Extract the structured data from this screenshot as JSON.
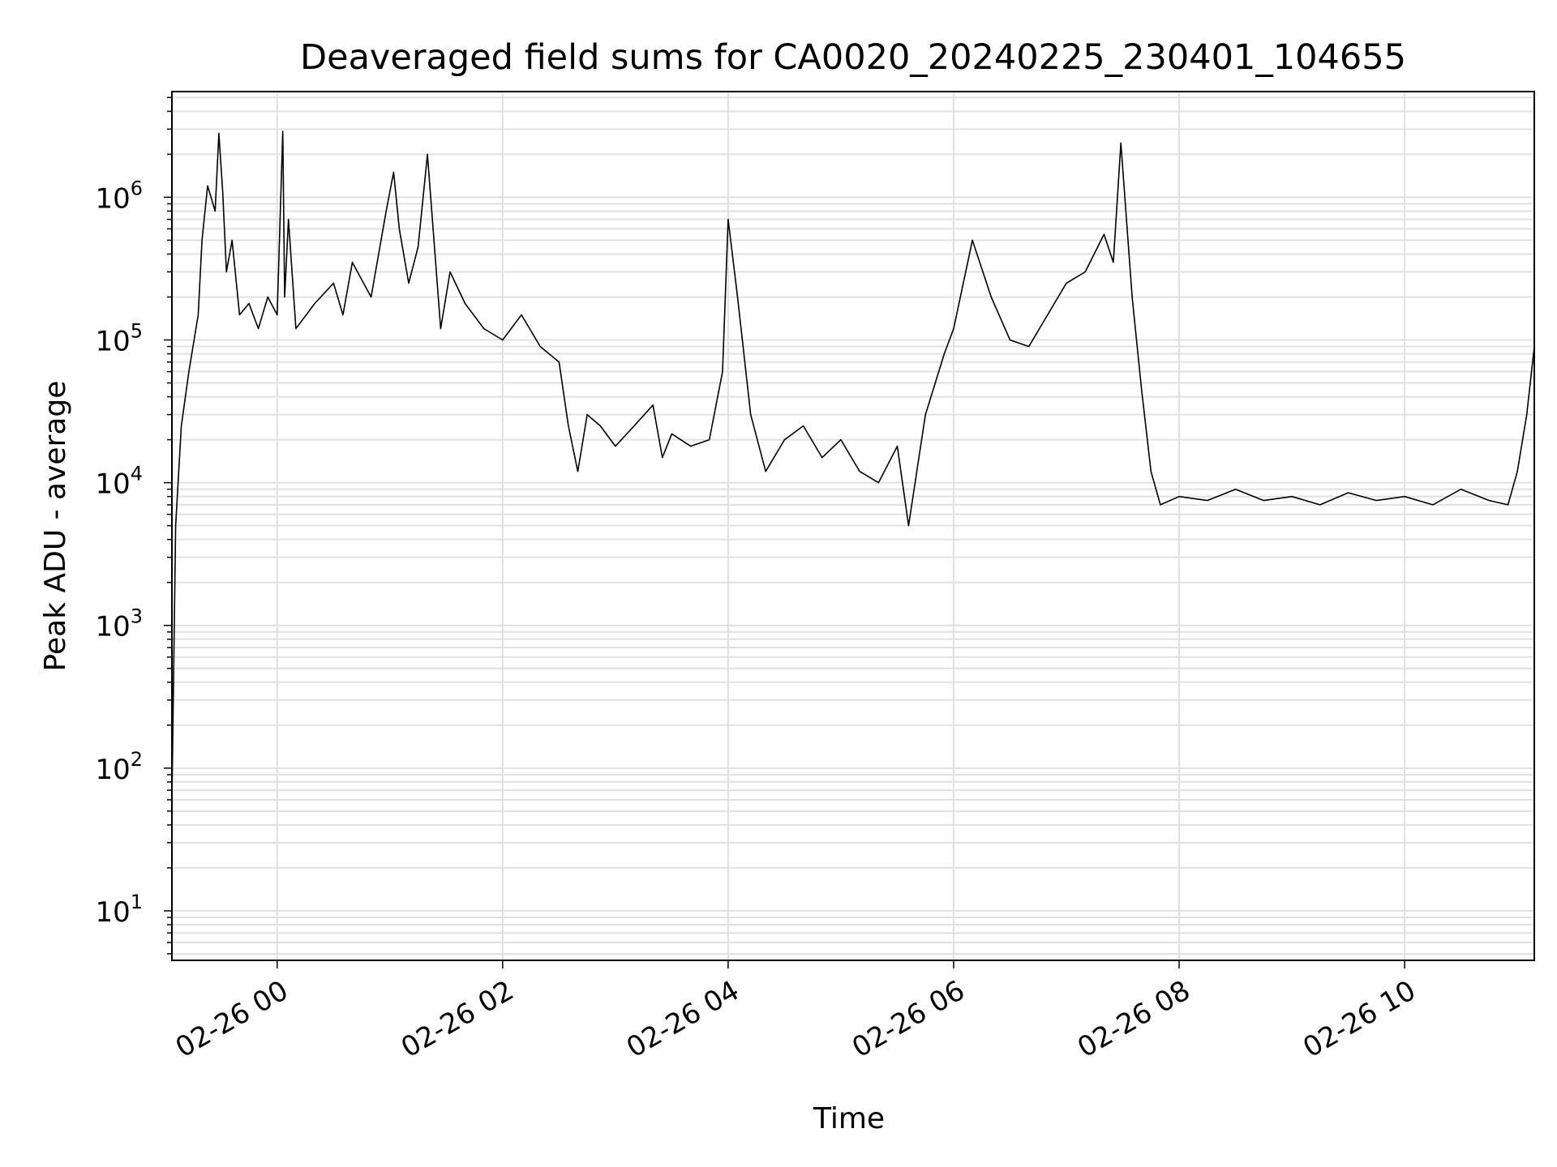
{
  "chart_data": {
    "type": "line",
    "title": "Deaveraged field sums for CA0020_20240225_230401_104655",
    "xlabel": "Time",
    "ylabel": "Peak ADU - average",
    "y_scale": "log",
    "ylim": [
      4.5,
      5500000
    ],
    "xlim": [
      "02-25 23:04",
      "02-26 11:09"
    ],
    "grid": true,
    "line_color": "#000000",
    "grid_color": "#e0e0e0",
    "x_ticks": [
      "02-26 00",
      "02-26 02",
      "02-26 04",
      "02-26 06",
      "02-26 08",
      "02-26 10"
    ],
    "y_ticks": [
      {
        "base": "10",
        "exp": "1"
      },
      {
        "base": "10",
        "exp": "2"
      },
      {
        "base": "10",
        "exp": "3"
      },
      {
        "base": "10",
        "exp": "4"
      },
      {
        "base": "10",
        "exp": "5"
      },
      {
        "base": "10",
        "exp": "6"
      }
    ],
    "series": [
      {
        "x": [
          "02-25 23:04",
          "02-25 23:06",
          "02-25 23:09",
          "02-25 23:13",
          "02-25 23:18",
          "02-25 23:20",
          "02-25 23:23",
          "02-25 23:27",
          "02-25 23:29",
          "02-25 23:31",
          "02-25 23:33",
          "02-25 23:36",
          "02-25 23:40",
          "02-25 23:45",
          "02-25 23:50",
          "02-25 23:55",
          "02-26 00:00",
          "02-26 00:03",
          "02-26 00:04",
          "02-26 00:06",
          "02-26 00:10",
          "02-26 00:20",
          "02-26 00:30",
          "02-26 00:35",
          "02-26 00:40",
          "02-26 00:50",
          "02-26 00:58",
          "02-26 01:02",
          "02-26 01:05",
          "02-26 01:10",
          "02-26 01:15",
          "02-26 01:20",
          "02-26 01:27",
          "02-26 01:32",
          "02-26 01:40",
          "02-26 01:50",
          "02-26 02:00",
          "02-26 02:10",
          "02-26 02:20",
          "02-26 02:30",
          "02-26 02:35",
          "02-26 02:40",
          "02-26 02:45",
          "02-26 02:52",
          "02-26 03:00",
          "02-26 03:10",
          "02-26 03:20",
          "02-26 03:25",
          "02-26 03:30",
          "02-26 03:40",
          "02-26 03:50",
          "02-26 03:57",
          "02-26 04:00",
          "02-26 04:05",
          "02-26 04:12",
          "02-26 04:20",
          "02-26 04:30",
          "02-26 04:40",
          "02-26 04:50",
          "02-26 05:00",
          "02-26 05:10",
          "02-26 05:20",
          "02-26 05:30",
          "02-26 05:36",
          "02-26 05:45",
          "02-26 05:55",
          "02-26 06:00",
          "02-26 06:10",
          "02-26 06:20",
          "02-26 06:30",
          "02-26 06:40",
          "02-26 06:50",
          "02-26 07:00",
          "02-26 07:10",
          "02-26 07:20",
          "02-26 07:25",
          "02-26 07:29",
          "02-26 07:35",
          "02-26 07:40",
          "02-26 07:45",
          "02-26 07:50",
          "02-26 08:00",
          "02-26 08:15",
          "02-26 08:30",
          "02-26 08:45",
          "02-26 09:00",
          "02-26 09:15",
          "02-26 09:30",
          "02-26 09:45",
          "02-26 10:00",
          "02-26 10:15",
          "02-26 10:30",
          "02-26 10:45",
          "02-26 10:55",
          "02-26 11:00",
          "02-26 11:05",
          "02-26 11:09"
        ],
        "y": [
          60,
          5000,
          25000,
          60000,
          150000,
          500000,
          1200000,
          800000,
          2800000,
          1100000,
          300000,
          500000,
          150000,
          180000,
          120000,
          200000,
          150000,
          2900000,
          200000,
          700000,
          120000,
          180000,
          250000,
          150000,
          350000,
          200000,
          800000,
          1500000,
          600000,
          250000,
          450000,
          2000000,
          120000,
          300000,
          180000,
          120000,
          100000,
          150000,
          90000,
          70000,
          25000,
          12000,
          30000,
          25000,
          18000,
          25000,
          35000,
          15000,
          22000,
          18000,
          20000,
          60000,
          700000,
          200000,
          30000,
          12000,
          20000,
          25000,
          15000,
          20000,
          12000,
          10000,
          18000,
          5000,
          30000,
          80000,
          120000,
          500000,
          200000,
          100000,
          90000,
          150000,
          250000,
          300000,
          550000,
          350000,
          2400000,
          200000,
          45000,
          12000,
          7000,
          8000,
          7500,
          9000,
          7500,
          8000,
          7000,
          8500,
          7500,
          8000,
          7000,
          9000,
          7500,
          7000,
          12000,
          30000,
          90000
        ]
      }
    ]
  }
}
